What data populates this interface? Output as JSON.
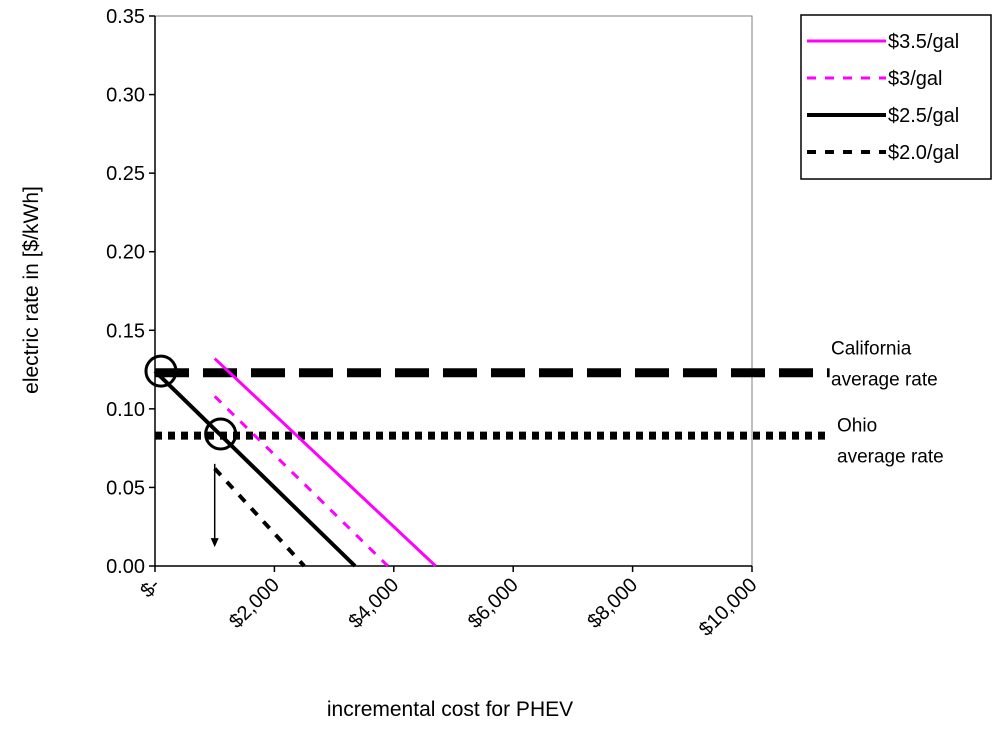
{
  "chart_data": {
    "type": "line",
    "title": "",
    "xlabel": "incremental cost for PHEV",
    "ylabel": "electric rate in [$/kWh]",
    "xlim": [
      0,
      10000
    ],
    "ylim": [
      0,
      0.35
    ],
    "x_ticks": [
      0,
      2000,
      4000,
      6000,
      8000,
      10000
    ],
    "x_tick_labels": [
      "$-",
      "$2,000",
      "$4,000",
      "$6,000",
      "$8,000",
      "$10,000"
    ],
    "y_ticks": [
      0,
      0.05,
      0.1,
      0.15,
      0.2,
      0.25,
      0.3,
      0.35
    ],
    "y_tick_labels": [
      "0.00",
      "0.05",
      "0.10",
      "0.15",
      "0.20",
      "0.25",
      "0.30",
      "0.35"
    ],
    "grid": false,
    "legend_position": "top-right",
    "series": [
      {
        "name": "$3.5/gal",
        "color": "#ff00ff",
        "dash": "solid",
        "points": [
          [
            1000,
            0.132
          ],
          [
            4700,
            0.0
          ]
        ]
      },
      {
        "name": "$3/gal",
        "color": "#ff00ff",
        "dash": "dashed",
        "points": [
          [
            1000,
            0.108
          ],
          [
            3900,
            0.0
          ]
        ]
      },
      {
        "name": "$2.5/gal",
        "color": "#000000",
        "dash": "solid",
        "points": [
          [
            0,
            0.124
          ],
          [
            3350,
            0.0
          ]
        ]
      },
      {
        "name": "$2.0/gal",
        "color": "#000000",
        "dash": "dashed",
        "points": [
          [
            1000,
            0.062
          ],
          [
            2500,
            0.0
          ]
        ]
      }
    ],
    "reference_lines": [
      {
        "label": "California average rate",
        "label_lines": [
          "California",
          "average rate"
        ],
        "y": 0.123,
        "x_range": [
          0,
          11300
        ],
        "color": "#000000",
        "style": "long-dash"
      },
      {
        "label": "Ohio average rate",
        "label_lines": [
          "Ohio",
          "average rate"
        ],
        "y": 0.083,
        "x_range": [
          0,
          11300
        ],
        "color": "#000000",
        "style": "dotted"
      }
    ],
    "markers": [
      {
        "type": "circle",
        "x": 100,
        "y": 0.124
      },
      {
        "type": "circle",
        "x": 1100,
        "y": 0.084
      }
    ],
    "arrows": [
      {
        "from": [
          1000,
          0.065
        ],
        "to": [
          1000,
          0.012
        ]
      }
    ]
  }
}
